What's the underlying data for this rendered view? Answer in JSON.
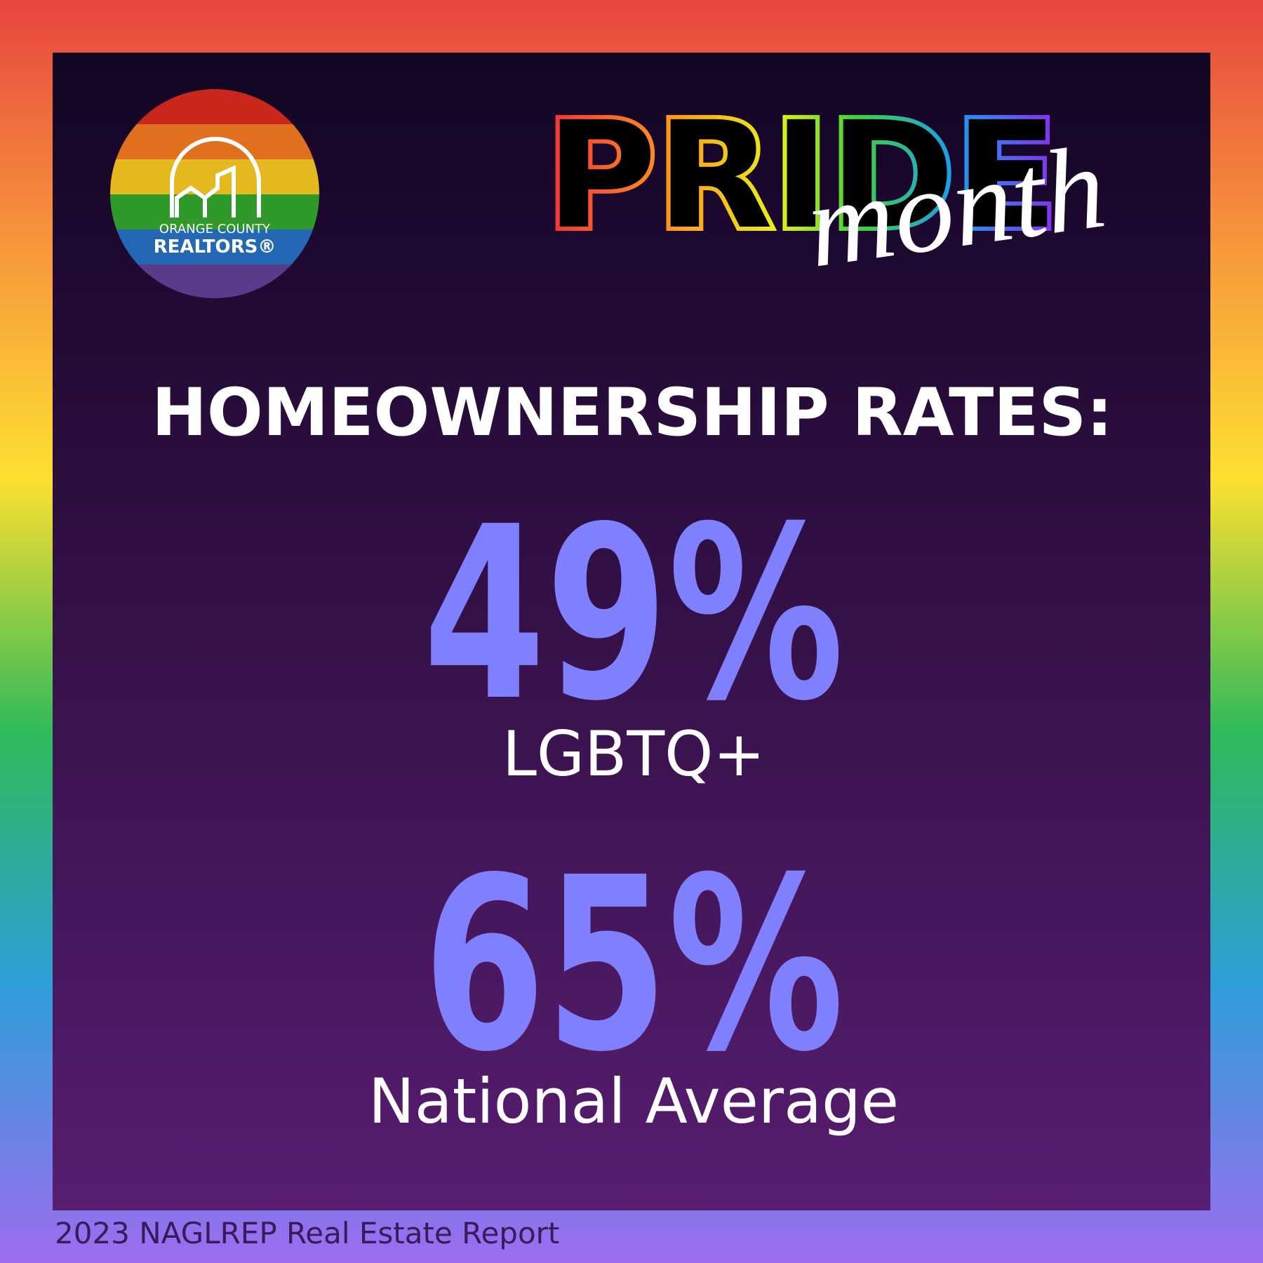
{
  "logo": {
    "line1": "ORANGE COUNTY",
    "line2": "REALTORS®"
  },
  "header": {
    "title": "PRIDE",
    "script": "month"
  },
  "heading": "HOMEOWNERSHIP RATES:",
  "stats": [
    {
      "value": "49%",
      "label": "LGBTQ+"
    },
    {
      "value": "65%",
      "label": "National Average"
    }
  ],
  "source": "2023 NAGLREP Real Estate Report"
}
